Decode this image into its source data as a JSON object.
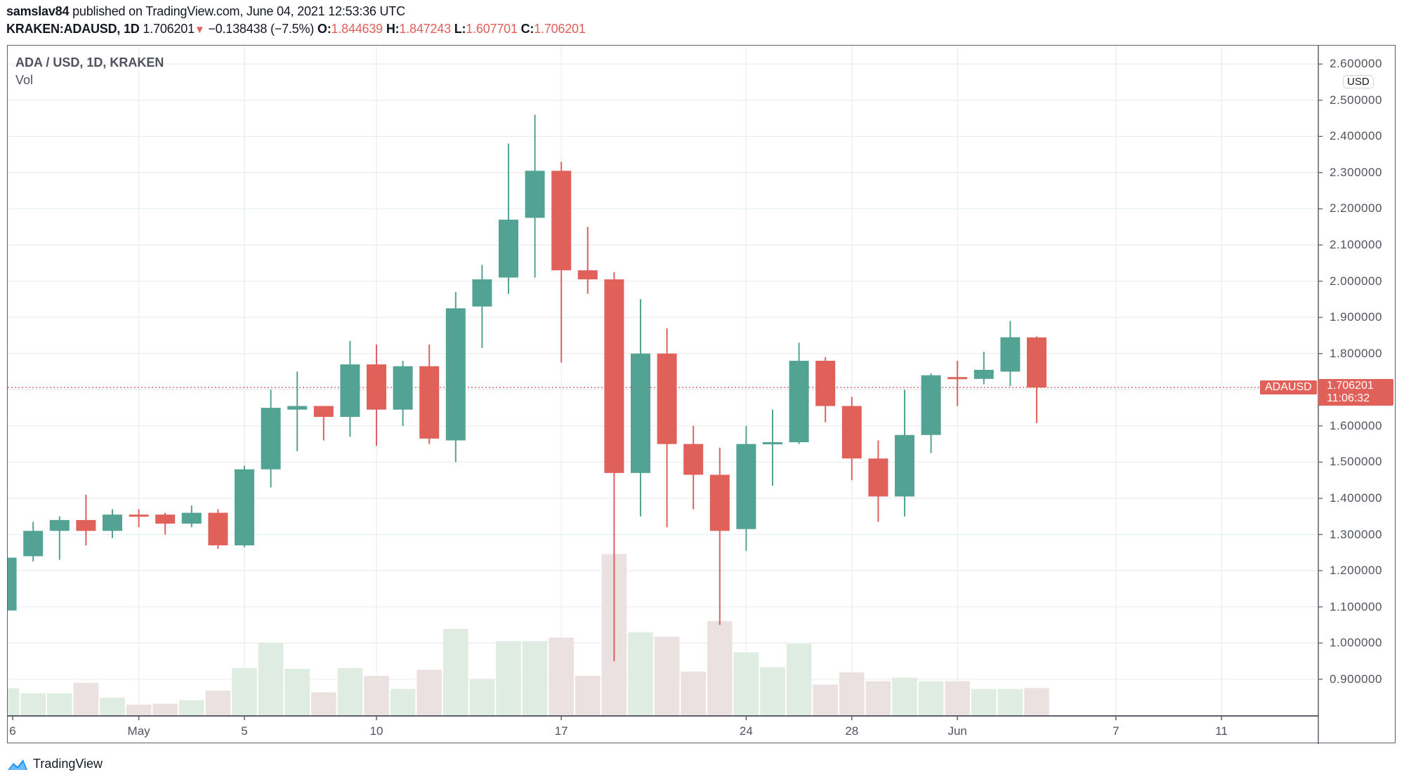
{
  "header": {
    "author": "samslav84",
    "published_text": "published on TradingView.com, June 04, 2021 12:53:36 UTC",
    "symbol": "KRAKEN:ADAUSD, 1D",
    "last": "1.706201",
    "change": "−0.138438 (−7.5%)",
    "o_label": "O:",
    "o_value": "1.844639",
    "h_label": "H:",
    "h_value": "1.847243",
    "l_label": "L:",
    "l_value": "1.607701",
    "c_label": "C:",
    "c_value": "1.706201"
  },
  "legend": {
    "title": "ADA / USD, 1D, KRAKEN",
    "volume": "Vol"
  },
  "price_axis": {
    "currency_badge": "USD",
    "symbol_tag": "ADAUSD",
    "price_tag": "1.706201",
    "countdown": "11:06:32"
  },
  "footer": {
    "brand": "TradingView"
  },
  "colors": {
    "up": "#53a395",
    "down": "#e0605a",
    "vol_up": "#dfece1",
    "vol_down": "#ece1e1",
    "grid": "#e9eef2"
  },
  "chart_data": {
    "type": "candlestick",
    "title": "ADA / USD, 1D, KRAKEN",
    "ylim": [
      0.8,
      2.65
    ],
    "y_ticks": [
      "2.600000",
      "2.500000",
      "2.400000",
      "2.300000",
      "2.200000",
      "2.100000",
      "2.000000",
      "1.900000",
      "1.800000",
      "1.600000",
      "1.500000",
      "1.400000",
      "1.300000",
      "1.200000",
      "1.100000",
      "1.000000",
      "0.900000"
    ],
    "x_ticks": [
      {
        "label": "6",
        "day": 0
      },
      {
        "label": "May",
        "day": 5
      },
      {
        "label": "5",
        "day": 9
      },
      {
        "label": "10",
        "day": 14
      },
      {
        "label": "17",
        "day": 21
      },
      {
        "label": "24",
        "day": 28
      },
      {
        "label": "28",
        "day": 32
      },
      {
        "label": "Jun",
        "day": 36
      },
      {
        "label": "7",
        "day": 42
      },
      {
        "label": "11",
        "day": 46
      }
    ],
    "last_price": 1.706201,
    "candles": [
      {
        "date": "Apr 26",
        "o": 1.09,
        "h": 1.24,
        "l": 1.085,
        "c": 1.236,
        "v": 32
      },
      {
        "date": "Apr 27",
        "o": 1.24,
        "h": 1.335,
        "l": 1.225,
        "c": 1.31,
        "v": 26
      },
      {
        "date": "Apr 28",
        "o": 1.31,
        "h": 1.35,
        "l": 1.23,
        "c": 1.34,
        "v": 26
      },
      {
        "date": "Apr 29",
        "o": 1.34,
        "h": 1.41,
        "l": 1.27,
        "c": 1.31,
        "v": 38
      },
      {
        "date": "Apr 30",
        "o": 1.31,
        "h": 1.37,
        "l": 1.29,
        "c": 1.355,
        "v": 21
      },
      {
        "date": "May 1",
        "o": 1.355,
        "h": 1.37,
        "l": 1.32,
        "c": 1.35,
        "v": 13
      },
      {
        "date": "May 2",
        "o": 1.355,
        "h": 1.36,
        "l": 1.3,
        "c": 1.33,
        "v": 14
      },
      {
        "date": "May 3",
        "o": 1.33,
        "h": 1.38,
        "l": 1.32,
        "c": 1.36,
        "v": 18
      },
      {
        "date": "May 4",
        "o": 1.36,
        "h": 1.37,
        "l": 1.26,
        "c": 1.27,
        "v": 29
      },
      {
        "date": "May 5",
        "o": 1.27,
        "h": 1.49,
        "l": 1.265,
        "c": 1.48,
        "v": 55
      },
      {
        "date": "May 6",
        "o": 1.48,
        "h": 1.7,
        "l": 1.43,
        "c": 1.65,
        "v": 84
      },
      {
        "date": "May 7",
        "o": 1.645,
        "h": 1.75,
        "l": 1.53,
        "c": 1.655,
        "v": 54
      },
      {
        "date": "May 8",
        "o": 1.655,
        "h": 1.655,
        "l": 1.56,
        "c": 1.625,
        "v": 27
      },
      {
        "date": "May 9",
        "o": 1.625,
        "h": 1.835,
        "l": 1.57,
        "c": 1.77,
        "v": 55
      },
      {
        "date": "May 10",
        "o": 1.77,
        "h": 1.825,
        "l": 1.545,
        "c": 1.645,
        "v": 46
      },
      {
        "date": "May 11",
        "o": 1.645,
        "h": 1.78,
        "l": 1.6,
        "c": 1.765,
        "v": 31
      },
      {
        "date": "May 12",
        "o": 1.765,
        "h": 1.825,
        "l": 1.55,
        "c": 1.565,
        "v": 53
      },
      {
        "date": "May 13",
        "o": 1.56,
        "h": 1.97,
        "l": 1.5,
        "c": 1.925,
        "v": 100
      },
      {
        "date": "May 14",
        "o": 1.93,
        "h": 2.045,
        "l": 1.815,
        "c": 2.005,
        "v": 42
      },
      {
        "date": "May 15",
        "o": 2.01,
        "h": 2.38,
        "l": 1.965,
        "c": 2.17,
        "v": 86
      },
      {
        "date": "May 16",
        "o": 2.175,
        "h": 2.46,
        "l": 2.01,
        "c": 2.305,
        "v": 86
      },
      {
        "date": "May 17",
        "o": 2.305,
        "h": 2.33,
        "l": 1.775,
        "c": 2.03,
        "v": 90
      },
      {
        "date": "May 18",
        "o": 2.03,
        "h": 2.15,
        "l": 1.965,
        "c": 2.005,
        "v": 46
      },
      {
        "date": "May 19",
        "o": 2.005,
        "h": 2.025,
        "l": 0.95,
        "c": 1.47,
        "v": 186
      },
      {
        "date": "May 20",
        "o": 1.47,
        "h": 1.95,
        "l": 1.35,
        "c": 1.8,
        "v": 96
      },
      {
        "date": "May 21",
        "o": 1.8,
        "h": 1.87,
        "l": 1.32,
        "c": 1.55,
        "v": 91
      },
      {
        "date": "May 22",
        "o": 1.55,
        "h": 1.6,
        "l": 1.37,
        "c": 1.465,
        "v": 51
      },
      {
        "date": "May 23",
        "o": 1.465,
        "h": 1.54,
        "l": 1.05,
        "c": 1.31,
        "v": 109
      },
      {
        "date": "May 24",
        "o": 1.315,
        "h": 1.6,
        "l": 1.255,
        "c": 1.55,
        "v": 73
      },
      {
        "date": "May 25",
        "o": 1.55,
        "h": 1.645,
        "l": 1.435,
        "c": 1.555,
        "v": 56
      },
      {
        "date": "May 26",
        "o": 1.555,
        "h": 1.83,
        "l": 1.55,
        "c": 1.78,
        "v": 83
      },
      {
        "date": "May 27",
        "o": 1.78,
        "h": 1.79,
        "l": 1.61,
        "c": 1.655,
        "v": 36
      },
      {
        "date": "May 28",
        "o": 1.655,
        "h": 1.68,
        "l": 1.45,
        "c": 1.51,
        "v": 50
      },
      {
        "date": "May 29",
        "o": 1.51,
        "h": 1.56,
        "l": 1.335,
        "c": 1.405,
        "v": 40
      },
      {
        "date": "May 30",
        "o": 1.405,
        "h": 1.7,
        "l": 1.35,
        "c": 1.575,
        "v": 44
      },
      {
        "date": "May 31",
        "o": 1.575,
        "h": 1.745,
        "l": 1.525,
        "c": 1.74,
        "v": 40
      },
      {
        "date": "Jun 1",
        "o": 1.735,
        "h": 1.78,
        "l": 1.655,
        "c": 1.73,
        "v": 40
      },
      {
        "date": "Jun 2",
        "o": 1.73,
        "h": 1.805,
        "l": 1.715,
        "c": 1.755,
        "v": 31
      },
      {
        "date": "Jun 3",
        "o": 1.75,
        "h": 1.89,
        "l": 1.71,
        "c": 1.845,
        "v": 31
      },
      {
        "date": "Jun 4",
        "o": 1.844639,
        "h": 1.847243,
        "l": 1.607701,
        "c": 1.706201,
        "v": 32
      }
    ]
  }
}
